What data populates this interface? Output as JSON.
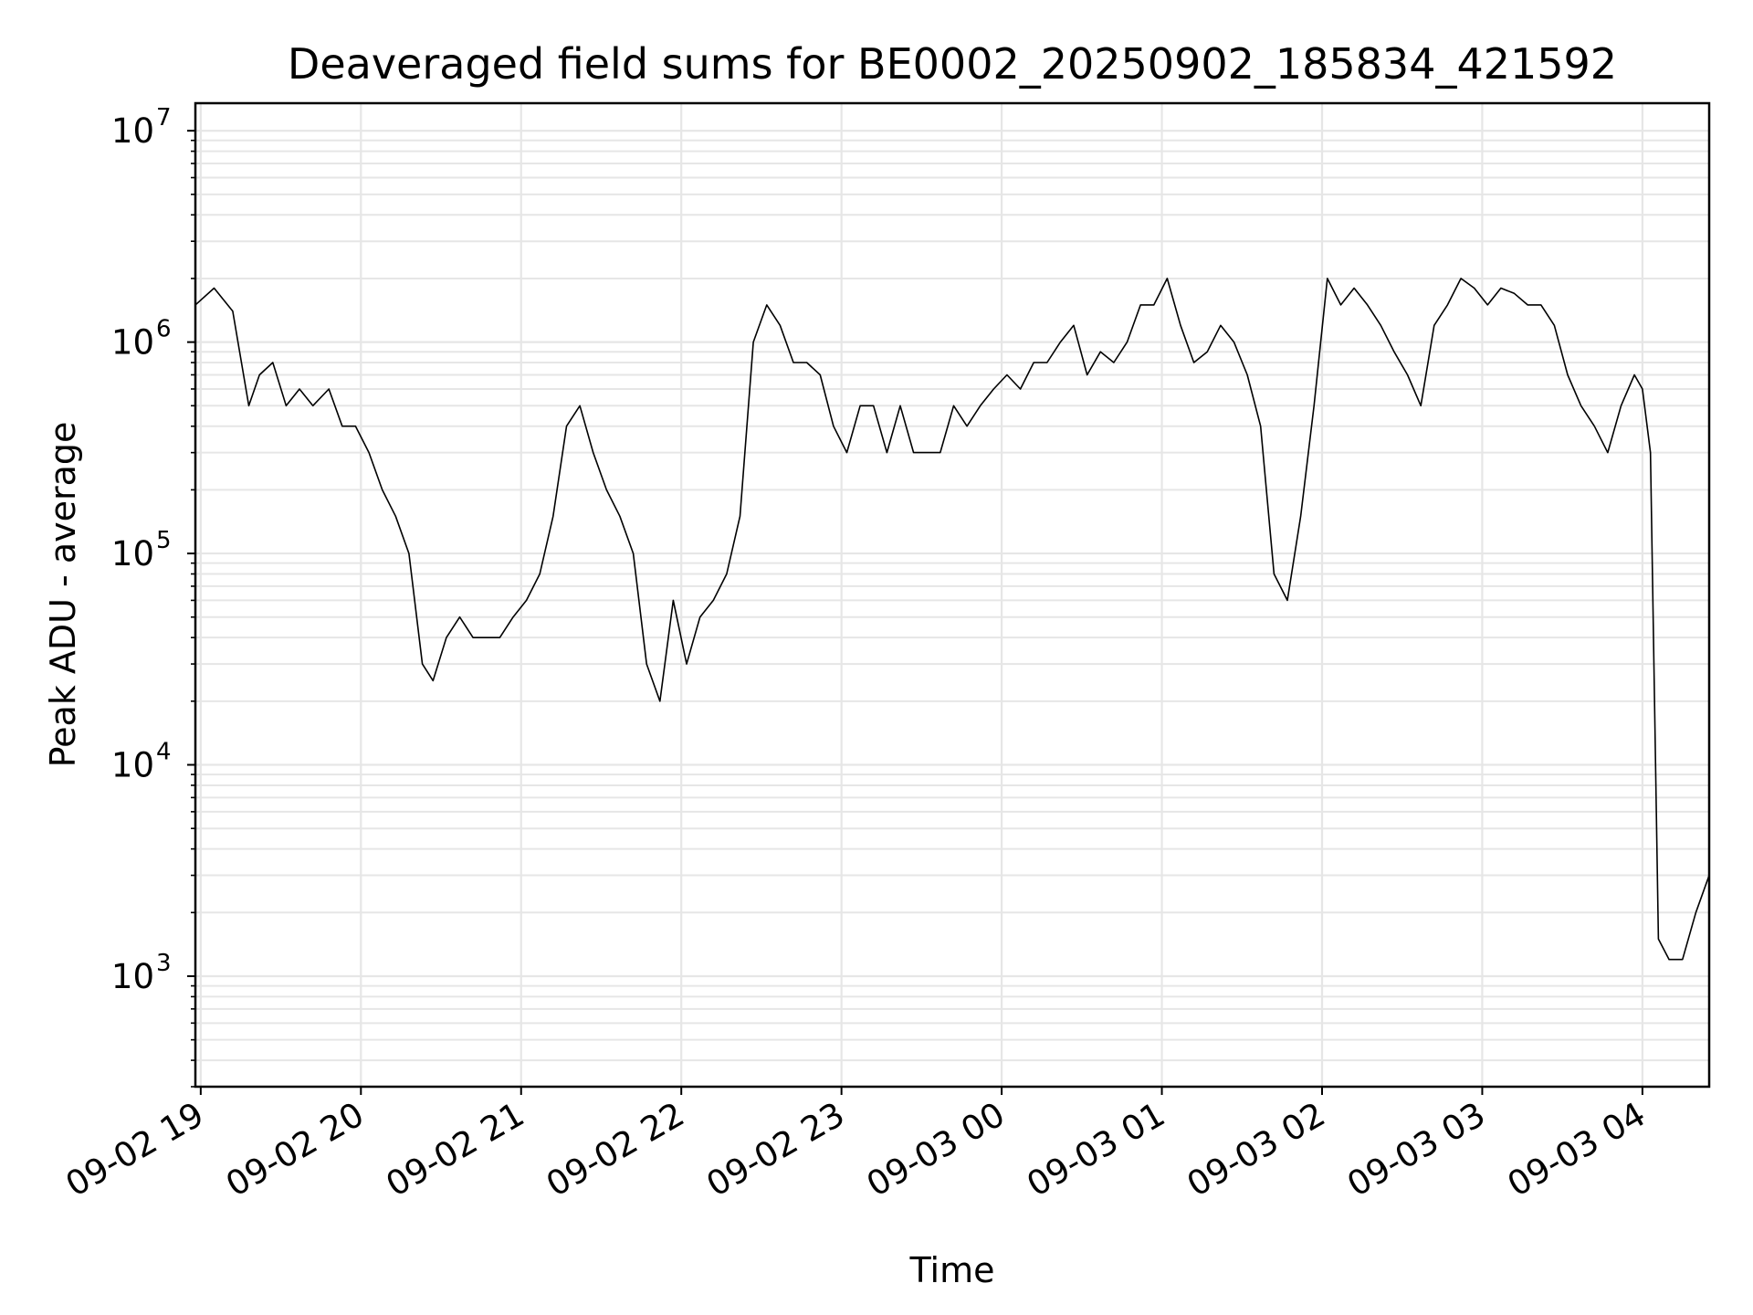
{
  "chart_data": {
    "type": "line",
    "title": "Deaveraged field sums for BE0002_20250902_185834_421592",
    "xlabel": "Time",
    "ylabel": "Peak ADU - average",
    "yscale": "log",
    "ylim": [
      300,
      13500000
    ],
    "xlim": [
      "09-02 18:58",
      "09-03 04:25"
    ],
    "y_ticks": [
      {
        "base": "10",
        "exponent": "3",
        "value": 1000
      },
      {
        "base": "10",
        "exponent": "4",
        "value": 10000
      },
      {
        "base": "10",
        "exponent": "5",
        "value": 100000
      },
      {
        "base": "10",
        "exponent": "6",
        "value": 1000000
      },
      {
        "base": "10",
        "exponent": "7",
        "value": 10000000
      }
    ],
    "x_ticks": [
      {
        "label": "09-02 19",
        "time": "09-02 19:00"
      },
      {
        "label": "09-02 20",
        "time": "09-02 20:00"
      },
      {
        "label": "09-02 21",
        "time": "09-02 21:00"
      },
      {
        "label": "09-02 22",
        "time": "09-02 22:00"
      },
      {
        "label": "09-02 23",
        "time": "09-02 23:00"
      },
      {
        "label": "09-03 00",
        "time": "09-03 00:00"
      },
      {
        "label": "09-03 01",
        "time": "09-03 01:00"
      },
      {
        "label": "09-03 02",
        "time": "09-03 02:00"
      },
      {
        "label": "09-03 03",
        "time": "09-03 03:00"
      },
      {
        "label": "09-03 04",
        "time": "09-03 04:00"
      }
    ],
    "grid": true,
    "line_color": "#000000",
    "grid_color": "#e6e6e6",
    "series": [
      {
        "x": [
          "09-02 18:58",
          "09-02 19:05",
          "09-02 19:12",
          "09-02 19:18",
          "09-02 19:22",
          "09-02 19:27",
          "09-02 19:32",
          "09-02 19:37",
          "09-02 19:42",
          "09-02 19:48",
          "09-02 19:53",
          "09-02 19:58",
          "09-02 20:03",
          "09-02 20:08",
          "09-02 20:13",
          "09-02 20:18",
          "09-02 20:23",
          "09-02 20:27",
          "09-02 20:32",
          "09-02 20:37",
          "09-02 20:42",
          "09-02 20:47",
          "09-02 20:52",
          "09-02 20:57",
          "09-02 21:02",
          "09-02 21:07",
          "09-02 21:12",
          "09-02 21:17",
          "09-02 21:22",
          "09-02 21:27",
          "09-02 21:32",
          "09-02 21:37",
          "09-02 21:42",
          "09-02 21:47",
          "09-02 21:52",
          "09-02 21:57",
          "09-02 22:02",
          "09-02 22:07",
          "09-02 22:12",
          "09-02 22:17",
          "09-02 22:22",
          "09-02 22:27",
          "09-02 22:32",
          "09-02 22:37",
          "09-02 22:42",
          "09-02 22:47",
          "09-02 22:52",
          "09-02 22:57",
          "09-02 23:02",
          "09-02 23:07",
          "09-02 23:12",
          "09-02 23:17",
          "09-02 23:22",
          "09-02 23:27",
          "09-02 23:32",
          "09-02 23:37",
          "09-02 23:42",
          "09-02 23:47",
          "09-02 23:52",
          "09-02 23:57",
          "09-03 00:02",
          "09-03 00:07",
          "09-03 00:12",
          "09-03 00:17",
          "09-03 00:22",
          "09-03 00:27",
          "09-03 00:32",
          "09-03 00:37",
          "09-03 00:42",
          "09-03 00:47",
          "09-03 00:52",
          "09-03 00:57",
          "09-03 01:02",
          "09-03 01:07",
          "09-03 01:12",
          "09-03 01:17",
          "09-03 01:22",
          "09-03 01:27",
          "09-03 01:32",
          "09-03 01:37",
          "09-03 01:42",
          "09-03 01:47",
          "09-03 01:52",
          "09-03 01:57",
          "09-03 02:02",
          "09-03 02:07",
          "09-03 02:12",
          "09-03 02:17",
          "09-03 02:22",
          "09-03 02:27",
          "09-03 02:32",
          "09-03 02:37",
          "09-03 02:42",
          "09-03 02:47",
          "09-03 02:52",
          "09-03 02:57",
          "09-03 03:02",
          "09-03 03:07",
          "09-03 03:12",
          "09-03 03:17",
          "09-03 03:22",
          "09-03 03:27",
          "09-03 03:32",
          "09-03 03:37",
          "09-03 03:42",
          "09-03 03:47",
          "09-03 03:52",
          "09-03 03:57",
          "09-03 04:00",
          "09-03 04:03",
          "09-03 04:06",
          "09-03 04:10",
          "09-03 04:15",
          "09-03 04:20",
          "09-03 04:25"
        ],
        "y": [
          1500000,
          1800000,
          1400000,
          500000,
          700000,
          800000,
          500000,
          600000,
          500000,
          600000,
          400000,
          400000,
          300000,
          200000,
          150000,
          100000,
          30000,
          25000,
          40000,
          50000,
          40000,
          40000,
          40000,
          50000,
          60000,
          80000,
          150000,
          400000,
          500000,
          300000,
          200000,
          150000,
          100000,
          30000,
          20000,
          60000,
          30000,
          50000,
          60000,
          80000,
          150000,
          1000000,
          1500000,
          1200000,
          800000,
          800000,
          700000,
          400000,
          300000,
          500000,
          500000,
          300000,
          500000,
          300000,
          300000,
          300000,
          500000,
          400000,
          500000,
          600000,
          700000,
          600000,
          800000,
          800000,
          1000000,
          1200000,
          700000,
          900000,
          800000,
          1000000,
          1500000,
          1500000,
          2000000,
          1200000,
          800000,
          900000,
          1200000,
          1000000,
          700000,
          400000,
          80000,
          60000,
          150000,
          500000,
          2000000,
          1500000,
          1800000,
          1500000,
          1200000,
          900000,
          700000,
          500000,
          1200000,
          1500000,
          2000000,
          1800000,
          1500000,
          1800000,
          1700000,
          1500000,
          1500000,
          1200000,
          700000,
          500000,
          400000,
          300000,
          500000,
          700000,
          600000,
          300000,
          1500,
          1200,
          1200,
          2000,
          3000
        ]
      }
    ]
  }
}
